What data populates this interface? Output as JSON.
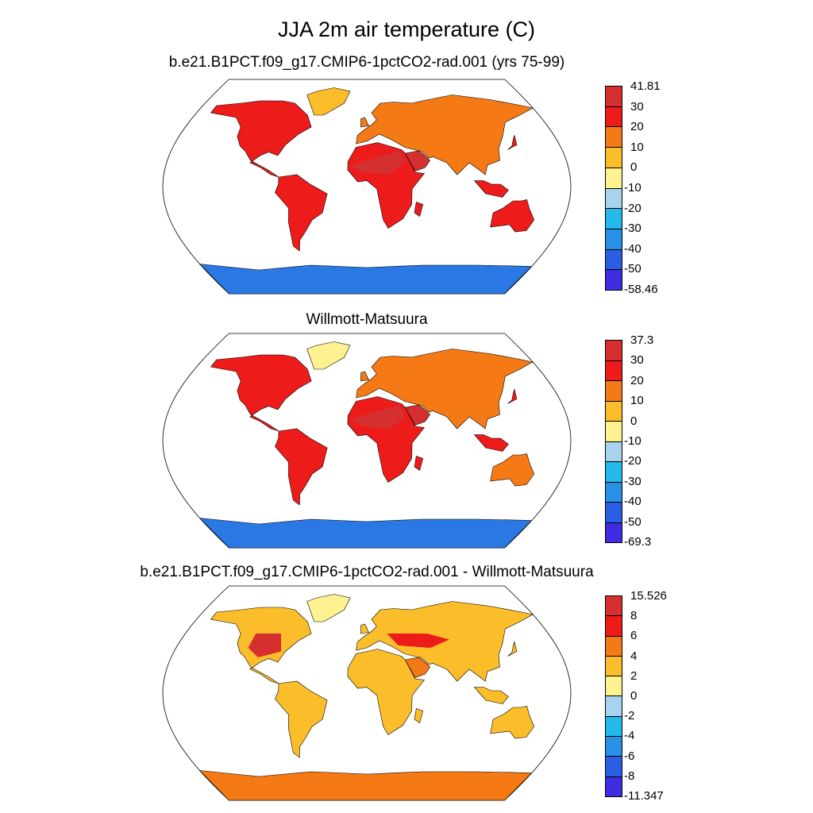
{
  "title": "JJA 2m air temperature (C)",
  "panels": [
    {
      "subtitle": "b.e21.B1PCT.f09_g17.CMIP6-1pctCO2-rad.001 (yrs 75-99)",
      "colorbar_labels": [
        "41.81",
        "30",
        "20",
        "10",
        "0",
        "-10",
        "-20",
        "-30",
        "-40",
        "-50",
        "-58.46"
      ],
      "colorbar_colors": [
        "#d62f2f",
        "#ee1b1b",
        "#f57a15",
        "#fbbd2a",
        "#fdf28f",
        "#a7d3ee",
        "#24b9ea",
        "#2891e6",
        "#2a5fe3",
        "#3d2ce0"
      ]
    },
    {
      "subtitle": "Willmott-Matsuura",
      "colorbar_labels": [
        "37.3",
        "30",
        "20",
        "10",
        "0",
        "-10",
        "-20",
        "-30",
        "-40",
        "-50",
        "-69.3"
      ],
      "colorbar_colors": [
        "#d62f2f",
        "#ee1b1b",
        "#f57a15",
        "#fbbd2a",
        "#fdf28f",
        "#a7d3ee",
        "#24b9ea",
        "#2891e6",
        "#2a5fe3",
        "#3d2ce0"
      ]
    },
    {
      "subtitle": "b.e21.B1PCT.f09_g17.CMIP6-1pctCO2-rad.001 - Willmott-Matsuura",
      "colorbar_labels": [
        "15.526",
        "8",
        "6",
        "4",
        "2",
        "0",
        "-2",
        "-4",
        "-6",
        "-8",
        "-11.347"
      ],
      "colorbar_colors": [
        "#d62f2f",
        "#ee1b1b",
        "#f57a15",
        "#fbbd2a",
        "#fdf28f",
        "#a7d3ee",
        "#24b9ea",
        "#2891e6",
        "#2a5fe3",
        "#3d2ce0"
      ]
    }
  ],
  "land_colors": {
    "hot": "#d62f2f",
    "warm": "#ee1b1b",
    "mild": "#f57a15",
    "cool": "#fbbd2a",
    "cold": "#fdf28f",
    "ice": "#2a78e3",
    "diff_bg": "#fbbd2a"
  }
}
